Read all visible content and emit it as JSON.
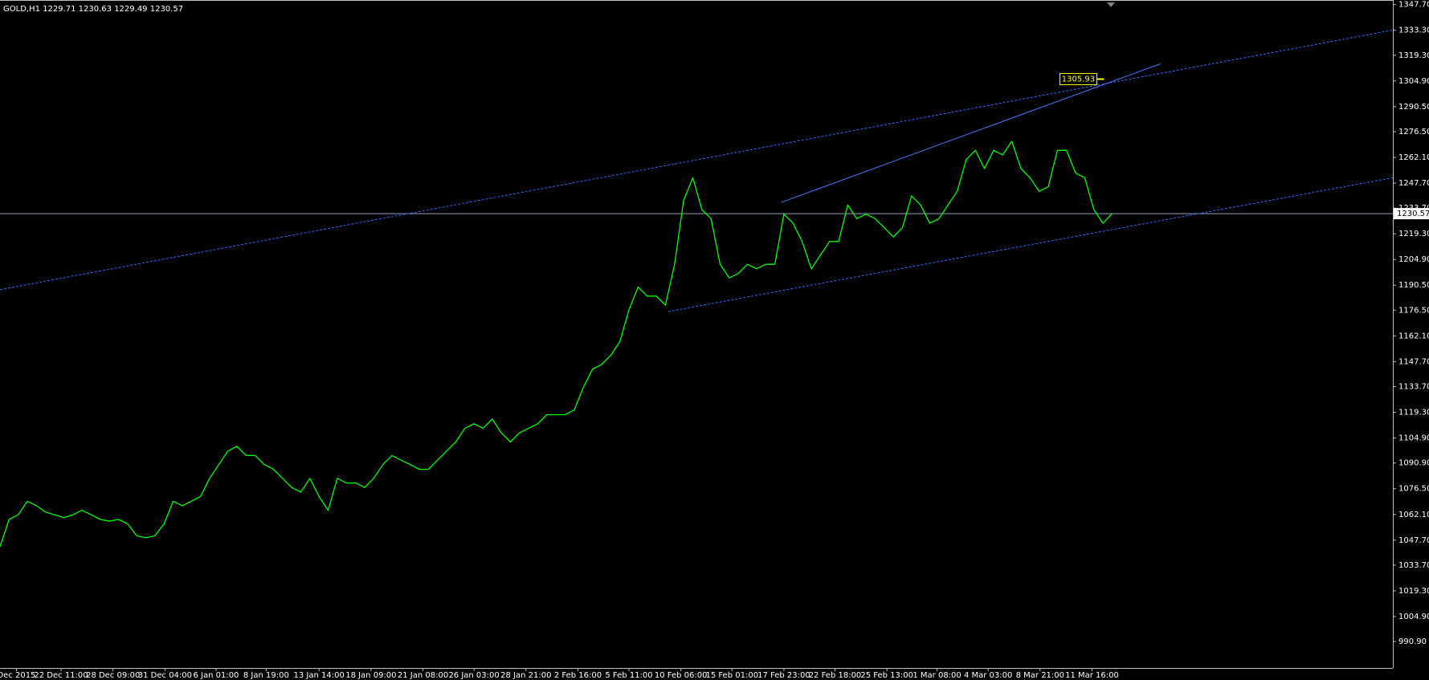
{
  "chart_data": {
    "type": "line",
    "title": "GOLD,H1  1229.71 1230.63 1229.49 1230.57",
    "series": [
      {
        "name": "GOLD,H1",
        "color": "#00ff00",
        "values": [
          1044.0,
          1059.3,
          1061.9,
          1069.5,
          1067.0,
          1063.4,
          1061.9,
          1060.3,
          1061.9,
          1064.4,
          1061.9,
          1059.3,
          1058.3,
          1059.3,
          1056.8,
          1050.1,
          1049.1,
          1050.1,
          1056.8,
          1069.5,
          1067.0,
          1069.5,
          1072.1,
          1082.3,
          1090.0,
          1097.6,
          1100.2,
          1095.1,
          1095.1,
          1090.0,
          1087.4,
          1082.3,
          1077.2,
          1074.6,
          1082.3,
          1072.1,
          1064.4,
          1082.3,
          1079.7,
          1079.7,
          1077.2,
          1082.3,
          1090.0,
          1095.1,
          1092.5,
          1090.0,
          1087.4,
          1087.4,
          1092.5,
          1097.6,
          1102.7,
          1110.4,
          1112.9,
          1110.4,
          1115.5,
          1107.8,
          1102.7,
          1107.8,
          1110.4,
          1112.9,
          1118.0,
          1118.0,
          1118.0,
          1120.6,
          1133.3,
          1143.5,
          1146.1,
          1151.2,
          1158.9,
          1176.7,
          1189.5,
          1184.4,
          1184.4,
          1179.3,
          1202.2,
          1238.0,
          1250.7,
          1232.9,
          1227.8,
          1202.2,
          1194.6,
          1197.1,
          1202.2,
          1199.7,
          1202.2,
          1202.2,
          1230.3,
          1225.2,
          1215.0,
          1199.7,
          1207.3,
          1215.0,
          1215.0,
          1235.4,
          1227.8,
          1230.3,
          1227.8,
          1222.7,
          1217.5,
          1222.7,
          1240.5,
          1235.4,
          1225.2,
          1227.8,
          1235.4,
          1243.1,
          1260.9,
          1266.0,
          1255.8,
          1266.0,
          1263.5,
          1271.1,
          1255.8,
          1250.7,
          1243.1,
          1245.6,
          1266.0,
          1266.0,
          1253.3,
          1250.7,
          1232.9,
          1225.2,
          1230.6
        ]
      }
    ],
    "xlim": [
      0,
      152.8
    ],
    "xticks": [
      {
        "value": 1.8,
        "label": "Dec 2015"
      },
      {
        "value": 6.7,
        "label": "22 Dec 11:00"
      },
      {
        "value": 12.4,
        "label": "28 Dec 09:00"
      },
      {
        "value": 18.1,
        "label": "31 Dec 04:00"
      },
      {
        "value": 23.7,
        "label": "6 Jan 01:00"
      },
      {
        "value": 29.2,
        "label": "8 Jan 19:00"
      },
      {
        "value": 35.0,
        "label": "13 Jan 14:00"
      },
      {
        "value": 40.7,
        "label": "18 Jan 09:00"
      },
      {
        "value": 46.4,
        "label": "21 Jan 08:00"
      },
      {
        "value": 52.0,
        "label": "26 Jan 03:00"
      },
      {
        "value": 57.7,
        "label": "28 Jan 21:00"
      },
      {
        "value": 63.4,
        "label": "2 Feb 16:00"
      },
      {
        "value": 69.0,
        "label": "5 Feb 11:00"
      },
      {
        "value": 74.7,
        "label": "10 Feb 06:00"
      },
      {
        "value": 80.3,
        "label": "15 Feb 01:00"
      },
      {
        "value": 86.0,
        "label": "17 Feb 23:00"
      },
      {
        "value": 91.6,
        "label": "22 Feb 18:00"
      },
      {
        "value": 97.3,
        "label": "25 Feb 13:00"
      },
      {
        "value": 102.8,
        "label": "1 Mar 08:00"
      },
      {
        "value": 108.4,
        "label": "4 Mar 03:00"
      },
      {
        "value": 114.1,
        "label": "8 Mar 21:00"
      },
      {
        "value": 119.8,
        "label": "11 Mar 16:00"
      }
    ],
    "ylim": [
      976.1,
      1350.25
    ],
    "yticks": [
      {
        "value": 1347.7,
        "label": "1347.70"
      },
      {
        "value": 1333.3,
        "label": "1333.30"
      },
      {
        "value": 1319.3,
        "label": "1319.30"
      },
      {
        "value": 1304.9,
        "label": "1304.90"
      },
      {
        "value": 1290.5,
        "label": "1290.50"
      },
      {
        "value": 1276.5,
        "label": "1276.50"
      },
      {
        "value": 1262.1,
        "label": "1262.10"
      },
      {
        "value": 1247.7,
        "label": "1247.70"
      },
      {
        "value": 1233.7,
        "label": "1233.70"
      },
      {
        "value": 1219.3,
        "label": "1219.30"
      },
      {
        "value": 1204.9,
        "label": "1204.90"
      },
      {
        "value": 1190.5,
        "label": "1190.50"
      },
      {
        "value": 1176.5,
        "label": "1176.50"
      },
      {
        "value": 1162.1,
        "label": "1162.10"
      },
      {
        "value": 1147.7,
        "label": "1147.70"
      },
      {
        "value": 1133.7,
        "label": "1133.70"
      },
      {
        "value": 1119.3,
        "label": "1119.30"
      },
      {
        "value": 1104.9,
        "label": "1104.90"
      },
      {
        "value": 1090.9,
        "label": "1090.90"
      },
      {
        "value": 1076.5,
        "label": "1076.50"
      },
      {
        "value": 1062.1,
        "label": "1062.10"
      },
      {
        "value": 1047.7,
        "label": "1047.70"
      },
      {
        "value": 1033.7,
        "label": "1033.70"
      },
      {
        "value": 1019.3,
        "label": "1019.30"
      },
      {
        "value": 1004.9,
        "label": "1004.90"
      },
      {
        "value": 990.9,
        "label": "990.90"
      }
    ],
    "grid": false,
    "trendlines": [
      {
        "x": [
          0,
          152.8
        ],
        "y": [
          1188.0,
          1333.4
        ],
        "style": "dashed",
        "color": "#2f6bff"
      },
      {
        "x": [
          85.7,
          127.3
        ],
        "y": [
          1236.9,
          1314.5
        ],
        "style": "solid",
        "color": "#4a78ff"
      },
      {
        "x": [
          73.3,
          152.8
        ],
        "y": [
          1175.7,
          1250.7
        ],
        "style": "dashed",
        "color": "#2f6bff"
      }
    ],
    "price_tag": {
      "x": 118.3,
      "value": 1305.93,
      "label": "1305.93",
      "color": "#ffff00"
    },
    "last_price": {
      "value": 1230.57,
      "label": "1230.57",
      "color": "#8fa3c0"
    }
  }
}
